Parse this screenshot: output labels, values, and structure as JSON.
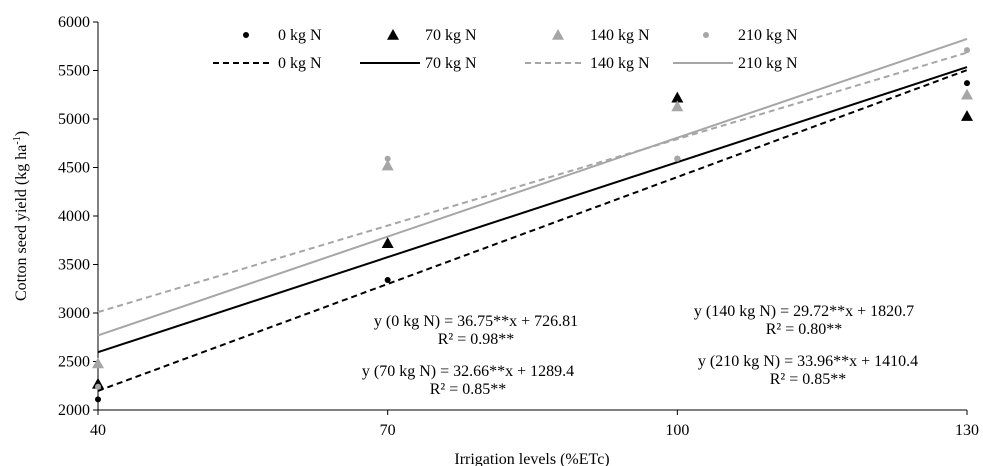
{
  "chart_data": {
    "type": "scatter",
    "xlabel": "Irrigation levels (%ETc)",
    "ylabel": "Cotton seed yield (kg ha",
    "ylabel_sup": "-1",
    "ylabel_close": ")",
    "xlim": [
      40,
      130
    ],
    "ylim": [
      2000,
      6000
    ],
    "xticks": [
      40,
      70,
      100,
      130
    ],
    "yticks": [
      2000,
      2500,
      3000,
      3500,
      4000,
      4500,
      5000,
      5500,
      6000
    ],
    "grid": false,
    "legend_position": "top",
    "series": [
      {
        "name": "0 kg N",
        "marker": "circle",
        "color": "#000000",
        "x": [
          40,
          70,
          100,
          130
        ],
        "y": [
          2110,
          3340,
          4590,
          5370
        ],
        "trend": {
          "slope": 36.75,
          "intercept": 726.81,
          "dash": "6,4",
          "color": "#000000",
          "name": "0 kg N"
        }
      },
      {
        "name": "70 kg N",
        "marker": "triangle",
        "color": "#000000",
        "x": [
          40,
          70,
          100,
          130
        ],
        "y": [
          2270,
          3720,
          5220,
          5030
        ],
        "trend": {
          "slope": 32.66,
          "intercept": 1289.4,
          "dash": "",
          "color": "#000000",
          "name": "70 kg N"
        }
      },
      {
        "name": "140 kg N",
        "marker": "triangle",
        "color": "#a6a6a6",
        "x": [
          40,
          70,
          100,
          130
        ],
        "y": [
          2480,
          4520,
          5130,
          5250
        ],
        "trend": {
          "slope": 29.72,
          "intercept": 1820.7,
          "dash": "6,4",
          "color": "#a6a6a6",
          "name": "140 kg N"
        }
      },
      {
        "name": "210 kg N",
        "marker": "circle",
        "color": "#a6a6a6",
        "x": [
          40,
          70,
          100,
          130
        ],
        "y": [
          2240,
          4590,
          4590,
          5710
        ],
        "trend": {
          "slope": 33.96,
          "intercept": 1410.4,
          "dash": "",
          "color": "#a6a6a6",
          "name": "210 kg N"
        }
      }
    ],
    "annotations": [
      {
        "line1": "y (0 kg N) = 36.75**x + 726.81",
        "line2": "R² = 0.98**"
      },
      {
        "line1": "y (70 kg N) = 32.66**x + 1289.4",
        "line2": "R² = 0.85**"
      },
      {
        "line1": "y (140 kg N) = 29.72**x + 1820.7",
        "line2": "R² = 0.80**"
      },
      {
        "line1": "y (210 kg N) = 33.96**x + 1410.4",
        "line2": "R² = 0.85**"
      }
    ]
  }
}
